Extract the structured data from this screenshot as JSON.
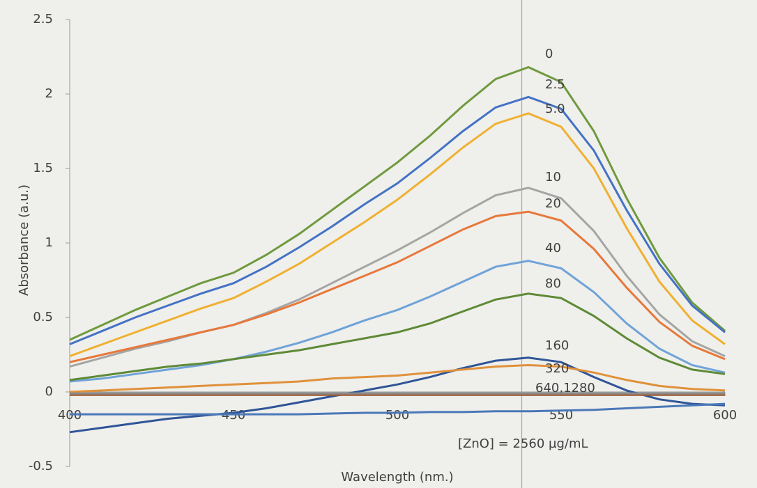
{
  "chart_data": {
    "type": "line",
    "x_label": "Wavelength (nm.)",
    "y_label": "Absorbance (a.u.)",
    "x": [
      400,
      410,
      420,
      430,
      440,
      450,
      460,
      470,
      480,
      490,
      500,
      510,
      520,
      530,
      540,
      550,
      560,
      570,
      580,
      590,
      600
    ],
    "xlim": [
      400,
      600
    ],
    "xticks": [
      400,
      450,
      500,
      550,
      600
    ],
    "ylim": [
      -0.5,
      2.5
    ],
    "yticks": [
      -0.5,
      0,
      0.5,
      1,
      1.5,
      2,
      2.5
    ],
    "marker_x": 538,
    "series": [
      {
        "name": "0",
        "color": "#6f9a3e",
        "values": [
          0.35,
          0.45,
          0.55,
          0.64,
          0.73,
          0.8,
          0.92,
          1.06,
          1.22,
          1.38,
          1.54,
          1.72,
          1.92,
          2.1,
          2.18,
          2.08,
          1.75,
          1.3,
          0.9,
          0.6,
          0.41
        ]
      },
      {
        "name": "2.5",
        "color": "#4472c4",
        "values": [
          0.32,
          0.41,
          0.5,
          0.58,
          0.66,
          0.73,
          0.84,
          0.97,
          1.11,
          1.26,
          1.4,
          1.57,
          1.75,
          1.91,
          1.98,
          1.9,
          1.62,
          1.22,
          0.86,
          0.58,
          0.4
        ]
      },
      {
        "name": "5.0",
        "color": "#f0b030",
        "values": [
          0.24,
          0.32,
          0.4,
          0.48,
          0.56,
          0.63,
          0.74,
          0.86,
          1.0,
          1.14,
          1.29,
          1.46,
          1.64,
          1.8,
          1.87,
          1.78,
          1.5,
          1.1,
          0.74,
          0.48,
          0.32
        ]
      },
      {
        "name": "10",
        "color": "#a5a5a5",
        "values": [
          0.17,
          0.23,
          0.29,
          0.34,
          0.4,
          0.45,
          0.53,
          0.62,
          0.73,
          0.84,
          0.95,
          1.07,
          1.2,
          1.32,
          1.37,
          1.3,
          1.08,
          0.78,
          0.52,
          0.34,
          0.24
        ]
      },
      {
        "name": "20",
        "color": "#e7783a",
        "values": [
          0.2,
          0.25,
          0.3,
          0.35,
          0.4,
          0.45,
          0.52,
          0.6,
          0.69,
          0.78,
          0.87,
          0.98,
          1.09,
          1.18,
          1.21,
          1.15,
          0.96,
          0.7,
          0.47,
          0.31,
          0.22
        ]
      },
      {
        "name": "40",
        "color": "#6fa3d8",
        "values": [
          0.07,
          0.09,
          0.12,
          0.15,
          0.18,
          0.22,
          0.27,
          0.33,
          0.4,
          0.48,
          0.55,
          0.64,
          0.74,
          0.84,
          0.88,
          0.83,
          0.67,
          0.46,
          0.29,
          0.18,
          0.13
        ]
      },
      {
        "name": "80",
        "color": "#5e8a35",
        "values": [
          0.08,
          0.11,
          0.14,
          0.17,
          0.19,
          0.22,
          0.25,
          0.28,
          0.32,
          0.36,
          0.4,
          0.46,
          0.54,
          0.62,
          0.66,
          0.63,
          0.51,
          0.36,
          0.23,
          0.15,
          0.12
        ]
      },
      {
        "name": "160",
        "color": "#2f5597",
        "values": [
          -0.27,
          -0.24,
          -0.21,
          -0.18,
          -0.16,
          -0.14,
          -0.11,
          -0.07,
          -0.03,
          0.01,
          0.05,
          0.1,
          0.16,
          0.21,
          0.23,
          0.2,
          0.1,
          0.01,
          -0.05,
          -0.08,
          -0.09
        ]
      },
      {
        "name": "320",
        "color": "#e0913a",
        "values": [
          0.0,
          0.01,
          0.02,
          0.03,
          0.04,
          0.05,
          0.06,
          0.07,
          0.09,
          0.1,
          0.11,
          0.13,
          0.15,
          0.17,
          0.18,
          0.17,
          0.13,
          0.08,
          0.04,
          0.02,
          0.01
        ]
      },
      {
        "name": "640,1280",
        "color": "#9e5a30",
        "values": [
          -0.02,
          -0.02,
          -0.02,
          -0.02,
          -0.02,
          -0.02,
          -0.02,
          -0.02,
          -0.02,
          -0.02,
          -0.02,
          -0.02,
          -0.02,
          -0.02,
          -0.02,
          -0.02,
          -0.02,
          -0.02,
          -0.02,
          -0.02,
          -0.02
        ]
      },
      {
        "color": "#8a8a8a",
        "values": [
          -0.01,
          -0.01,
          -0.01,
          -0.01,
          -0.01,
          -0.01,
          -0.01,
          -0.01,
          -0.01,
          -0.01,
          -0.01,
          -0.01,
          -0.01,
          -0.01,
          -0.01,
          -0.01,
          -0.01,
          -0.01,
          -0.01,
          -0.01,
          -0.01
        ]
      },
      {
        "name": "[ZnO] = 2560 µg/mL",
        "color": "#4a78b8",
        "values": [
          -0.15,
          -0.15,
          -0.15,
          -0.15,
          -0.15,
          -0.15,
          -0.15,
          -0.15,
          -0.145,
          -0.14,
          -0.14,
          -0.135,
          -0.135,
          -0.13,
          -0.13,
          -0.125,
          -0.12,
          -0.11,
          -0.1,
          -0.09,
          -0.08
        ]
      }
    ]
  }
}
